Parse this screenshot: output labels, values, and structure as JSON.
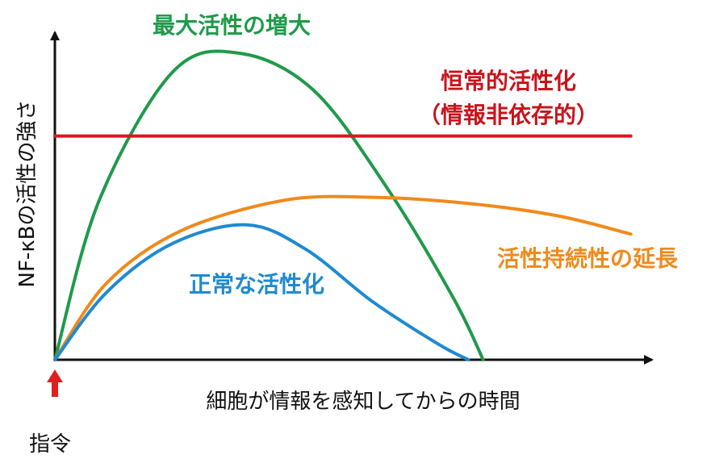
{
  "chart_data": {
    "type": "line",
    "ylabel": "NF-κBの活性の強さ",
    "xlabel": "細胞が情報を感知してからの時間",
    "origin_label": "指令",
    "grid": false,
    "legend": "none",
    "series": [
      {
        "name": "最大活性の増大",
        "color": "#1f9a4a",
        "label_lines": [
          "最大活性の増大"
        ],
        "points": [
          [
            0,
            0
          ],
          [
            0.06,
            0.52
          ],
          [
            0.16,
            0.94
          ],
          [
            0.25,
            1.0
          ],
          [
            0.35,
            0.88
          ],
          [
            0.45,
            0.56
          ],
          [
            0.54,
            0.2
          ],
          [
            0.58,
            0.0
          ]
        ]
      },
      {
        "name": "恒常的活性化",
        "color": "#e0141e",
        "label_lines": [
          "恒常的活性化",
          "（情報非依存的）"
        ],
        "points": [
          [
            0,
            0.73
          ],
          [
            0.78,
            0.73
          ]
        ]
      },
      {
        "name": "活性持続性の延長",
        "color": "#ef8a1c",
        "label_lines": [
          "活性持続性の延長"
        ],
        "points": [
          [
            0,
            0
          ],
          [
            0.07,
            0.25
          ],
          [
            0.17,
            0.42
          ],
          [
            0.31,
            0.52
          ],
          [
            0.43,
            0.53
          ],
          [
            0.56,
            0.51
          ],
          [
            0.68,
            0.47
          ],
          [
            0.78,
            0.41
          ]
        ]
      },
      {
        "name": "正常な活性化",
        "color": "#1f8ad0",
        "label_lines": [
          "正常な活性化"
        ],
        "points": [
          [
            0,
            0
          ],
          [
            0.07,
            0.22
          ],
          [
            0.16,
            0.38
          ],
          [
            0.26,
            0.44
          ],
          [
            0.34,
            0.36
          ],
          [
            0.43,
            0.19
          ],
          [
            0.52,
            0.05
          ],
          [
            0.56,
            0.0
          ]
        ]
      }
    ]
  }
}
